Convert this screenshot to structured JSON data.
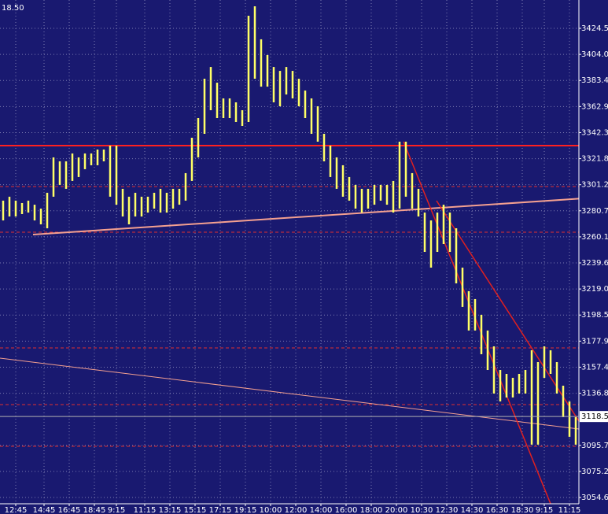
{
  "chart_data": {
    "type": "ohlc",
    "title": "18.50",
    "color": "#ffff66",
    "high": [
      3288.7,
      3291.8,
      3288.7,
      3286.8,
      3288.7,
      3285.5,
      3282.4,
      3294.9,
      3322.8,
      3319.7,
      3319.7,
      3325.9,
      3322.8,
      3325.9,
      3325.9,
      3329.0,
      3329.0,
      3332.1,
      3332.1,
      3298.0,
      3291.8,
      3294.9,
      3291.8,
      3291.8,
      3294.9,
      3298.0,
      3294.9,
      3298.0,
      3298.0,
      3310.4,
      3338.3,
      3353.8,
      3384.8,
      3394.1,
      3381.7,
      3369.3,
      3369.3,
      3366.2,
      3360.0,
      3434.5,
      3441.9,
      3415.9,
      3403.5,
      3394.1,
      3391.0,
      3394.1,
      3391.0,
      3384.8,
      3375.5,
      3369.3,
      3363.1,
      3341.4,
      3332.1,
      3322.8,
      3316.6,
      3307.3,
      3301.1,
      3298.0,
      3298.0,
      3301.1,
      3301.1,
      3301.1,
      3304.2,
      3335.2,
      3335.2,
      3310.4,
      3298.0,
      3279.3,
      3273.1,
      3279.3,
      3285.5,
      3279.3,
      3266.9,
      3235.9,
      3217.3,
      3211.1,
      3198.7,
      3186.3,
      3173.8,
      3155.2,
      3152.1,
      3149.0,
      3152.1,
      3155.2,
      3170.7,
      3161.4,
      3173.8,
      3170.7,
      3161.4,
      3142.8,
      3130.4,
      3118.0
    ],
    "low": [
      3273.1,
      3276.2,
      3276.2,
      3278.1,
      3279.3,
      3273.1,
      3270.0,
      3266.9,
      3291.8,
      3301.1,
      3298.0,
      3304.2,
      3307.3,
      3313.5,
      3316.6,
      3316.6,
      3319.7,
      3291.8,
      3285.5,
      3276.2,
      3270.0,
      3276.2,
      3276.2,
      3279.3,
      3282.4,
      3279.3,
      3279.3,
      3282.4,
      3285.5,
      3288.7,
      3304.2,
      3322.8,
      3341.4,
      3360.0,
      3353.8,
      3353.8,
      3353.8,
      3350.7,
      3347.6,
      3350.7,
      3384.8,
      3378.6,
      3378.6,
      3366.2,
      3363.1,
      3372.4,
      3369.3,
      3363.1,
      3353.8,
      3341.4,
      3335.2,
      3319.7,
      3307.3,
      3298.0,
      3291.8,
      3288.7,
      3282.4,
      3279.3,
      3282.4,
      3285.5,
      3288.7,
      3285.5,
      3279.3,
      3282.4,
      3291.8,
      3282.4,
      3276.2,
      3248.3,
      3235.9,
      3248.3,
      3254.5,
      3248.3,
      3223.5,
      3204.9,
      3186.3,
      3186.3,
      3167.6,
      3155.2,
      3136.6,
      3130.4,
      3133.5,
      3133.5,
      3136.6,
      3136.6,
      3096.3,
      3096.3,
      3149.0,
      3152.1,
      3136.6,
      3118.0,
      3102.5,
      3096.3
    ],
    "xlim": [
      0,
      92
    ],
    "xticks": [
      {
        "value": 2.5,
        "label": "12:45"
      },
      {
        "value": 7,
        "label": "14:45"
      },
      {
        "value": 11,
        "label": "16:45"
      },
      {
        "value": 15,
        "label": "18:45"
      },
      {
        "value": 18.5,
        "label": "9:15"
      },
      {
        "value": 23,
        "label": "11:15"
      },
      {
        "value": 27,
        "label": "13:15"
      },
      {
        "value": 31,
        "label": "15:15"
      },
      {
        "value": 35,
        "label": "17:15"
      },
      {
        "value": 39,
        "label": "19:15"
      },
      {
        "value": 43,
        "label": "10:00"
      },
      {
        "value": 47,
        "label": "12:00"
      },
      {
        "value": 51,
        "label": "14:00"
      },
      {
        "value": 55,
        "label": "16:00"
      },
      {
        "value": 59,
        "label": "18:00"
      },
      {
        "value": 63,
        "label": "20:00"
      },
      {
        "value": 67,
        "label": "10:30"
      },
      {
        "value": 71,
        "label": "12:30"
      },
      {
        "value": 75,
        "label": "14:30"
      },
      {
        "value": 79,
        "label": "16:30"
      },
      {
        "value": 83,
        "label": "18:30"
      },
      {
        "value": 86.5,
        "label": "9:15"
      },
      {
        "value": 90.5,
        "label": "11:15"
      }
    ],
    "ylim": [
      3049.7,
      3446.9
    ],
    "yticks": [
      3424.55,
      {
        "value": 3404,
        "label": "3404.00"
      },
      3383.45,
      {
        "value": 3362.9,
        "label": "3362.90"
      },
      3342.35,
      {
        "value": 3321.8,
        "label": "3321.80"
      },
      3301.25,
      {
        "value": 3280.7,
        "label": "3280.70"
      },
      3260.15,
      {
        "value": 3239.6,
        "label": "3239.60"
      },
      3219.05,
      {
        "value": 3198.5,
        "label": "3198.50"
      },
      3177.95,
      {
        "value": 3157.4,
        "label": "3157.40"
      },
      3136.85,
      3095.75,
      {
        "value": 3075.2,
        "label": "3075.20"
      },
      3054.65
    ],
    "last_price": {
      "value": 3118.5,
      "label": "3118.50"
    },
    "grid": true
  }
}
